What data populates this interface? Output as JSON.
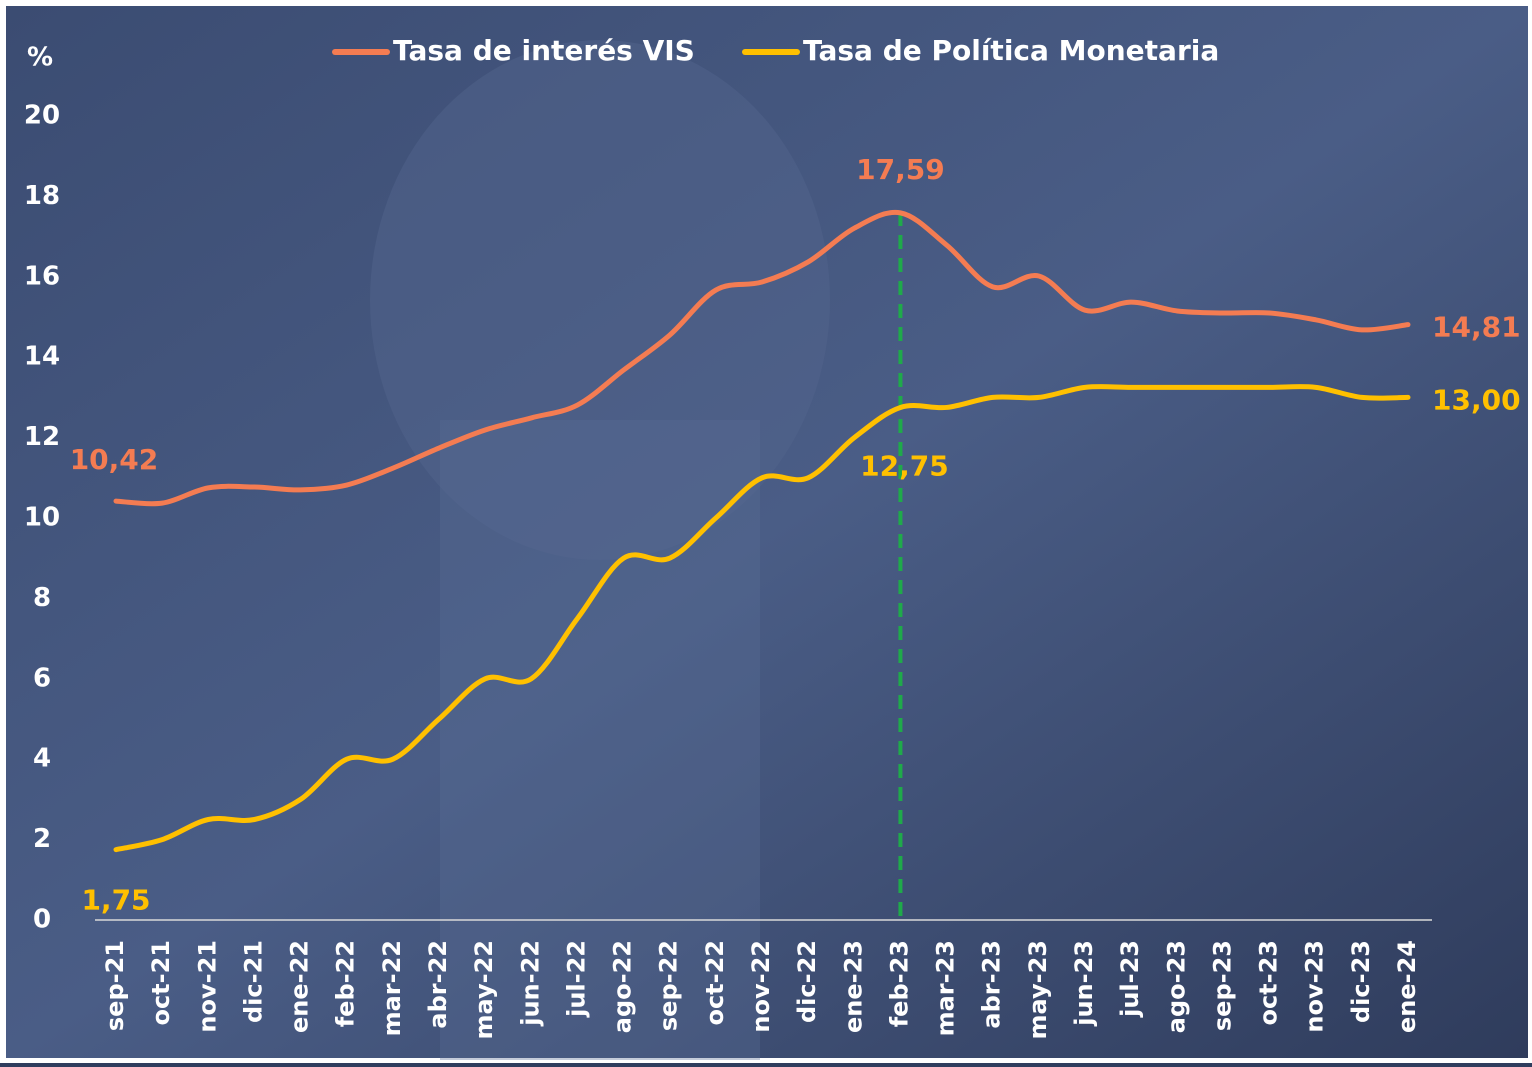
{
  "chart_data": {
    "type": "line",
    "y_label": "%",
    "categories": [
      "sep-21",
      "oct-21",
      "nov-21",
      "dic-21",
      "ene-22",
      "feb-22",
      "mar-22",
      "abr-22",
      "may-22",
      "jun-22",
      "jul-22",
      "ago-22",
      "sep-22",
      "oct-22",
      "nov-22",
      "dic-22",
      "ene-23",
      "feb-23",
      "mar-23",
      "abr-23",
      "may-23",
      "jun-23",
      "jul-23",
      "ago-23",
      "sep-23",
      "oct-23",
      "nov-23",
      "dic-23",
      "ene-24"
    ],
    "series": [
      {
        "name": "Tasa de interés VIS",
        "color": "#f47c52",
        "values": [
          10.42,
          10.37,
          10.75,
          10.77,
          10.7,
          10.82,
          11.24,
          11.74,
          12.19,
          12.49,
          12.81,
          13.68,
          14.55,
          15.67,
          15.87,
          16.37,
          17.21,
          17.59,
          16.79,
          15.75,
          16.02,
          15.17,
          15.37,
          15.15,
          15.1,
          15.1,
          14.93,
          14.68,
          14.81
        ],
        "value_labels": [
          "10,42",
          null,
          null,
          null,
          null,
          null,
          null,
          null,
          null,
          null,
          null,
          null,
          null,
          null,
          null,
          null,
          null,
          "17,59",
          null,
          null,
          null,
          null,
          null,
          null,
          null,
          null,
          null,
          null,
          "14,81"
        ]
      },
      {
        "name": "Tasa de Política Monetaria",
        "color": "#ffc000",
        "values": [
          1.75,
          2.0,
          2.5,
          2.5,
          3.0,
          4.0,
          4.0,
          5.0,
          6.0,
          6.0,
          7.5,
          9.0,
          9.0,
          10.0,
          11.0,
          11.0,
          12.0,
          12.75,
          12.75,
          13.0,
          13.0,
          13.25,
          13.25,
          13.25,
          13.25,
          13.25,
          13.25,
          13.0,
          13.0
        ],
        "value_labels": [
          "1,75",
          null,
          null,
          null,
          null,
          null,
          null,
          null,
          null,
          null,
          null,
          null,
          null,
          null,
          null,
          null,
          null,
          "12,75",
          null,
          null,
          null,
          null,
          null,
          null,
          null,
          null,
          null,
          null,
          "13,00"
        ]
      }
    ],
    "ylim": [
      0,
      20
    ],
    "yticks": [
      0,
      2,
      4,
      6,
      8,
      10,
      12,
      14,
      16,
      18,
      20
    ],
    "grid": false
  }
}
